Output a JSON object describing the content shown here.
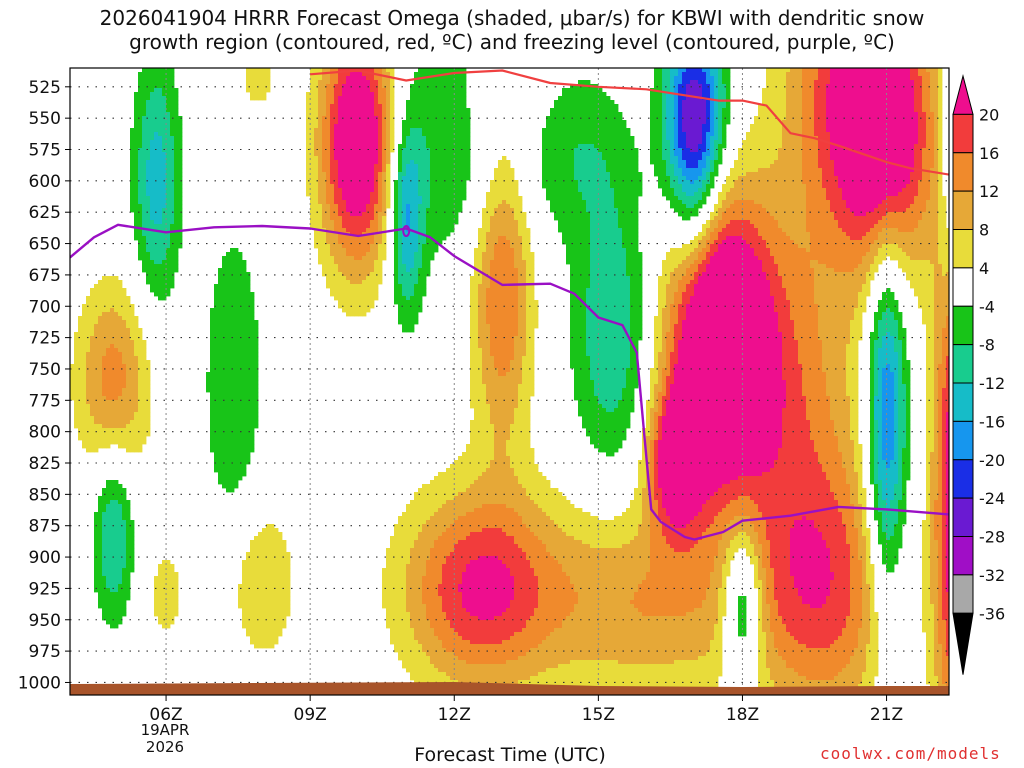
{
  "title": "2026041904 HRRR Forecast Omega (shaded, μbar/s) for KBWI with dendritic snow\ngrowth region (contoured, red, ºC) and freezing level (contoured, purple, ºC)",
  "x_axis_title": "Forecast Time (UTC)",
  "date_line1": "19APR",
  "date_line2": "2026",
  "credit": "coolwx.com/models",
  "chart_data": {
    "type": "heatmap",
    "title": "2026041904 HRRR Forecast Omega (shaded, μbar/s) for KBWI with dendritic snow growth region (contoured, red, ºC) and freezing level (contoured, purple, ºC)",
    "xlabel": "Forecast Time (UTC)",
    "ylabel": "",
    "x_range_hours": [
      4,
      22.3
    ],
    "y_range_hPa": [
      1010,
      510
    ],
    "x_ticks": [
      {
        "hour": 6,
        "label": "06Z"
      },
      {
        "hour": 9,
        "label": "09Z"
      },
      {
        "hour": 12,
        "label": "12Z"
      },
      {
        "hour": 15,
        "label": "15Z"
      },
      {
        "hour": 18,
        "label": "18Z"
      },
      {
        "hour": 21,
        "label": "21Z"
      }
    ],
    "y_ticks": [
      525,
      550,
      575,
      600,
      625,
      650,
      675,
      700,
      725,
      750,
      775,
      800,
      825,
      850,
      875,
      900,
      925,
      950,
      975,
      1000
    ],
    "colorbar": {
      "labels": [
        "20",
        "16",
        "12",
        "8",
        "4",
        "-4",
        "-8",
        "-12",
        "-16",
        "-20",
        "-24",
        "-28",
        "-32",
        "-36"
      ],
      "levels": [
        20,
        16,
        12,
        8,
        4,
        -4,
        -8,
        -12,
        -16,
        -20,
        -24,
        -28,
        -32,
        -36
      ],
      "bins": [
        {
          "min": 20,
          "max": null,
          "color": "#ee0e8e"
        },
        {
          "min": 16,
          "max": 20,
          "color": "#f23c3c"
        },
        {
          "min": 12,
          "max": 16,
          "color": "#f08a2c"
        },
        {
          "min": 8,
          "max": 12,
          "color": "#e6a837"
        },
        {
          "min": 4,
          "max": 8,
          "color": "#e8dc3a"
        },
        {
          "min": -4,
          "max": 4,
          "color": "#ffffff"
        },
        {
          "min": -8,
          "max": -4,
          "color": "#18c418"
        },
        {
          "min": -12,
          "max": -8,
          "color": "#18cc8e"
        },
        {
          "min": -16,
          "max": -12,
          "color": "#16bcc8"
        },
        {
          "min": -20,
          "max": -16,
          "color": "#1696ee"
        },
        {
          "min": -24,
          "max": -20,
          "color": "#1a2ee6"
        },
        {
          "min": -28,
          "max": -24,
          "color": "#6a1ad2"
        },
        {
          "min": -32,
          "max": -28,
          "color": "#a00ec6"
        },
        {
          "min": -36,
          "max": -32,
          "color": "#a8a8a8"
        },
        {
          "min": null,
          "max": -36,
          "color": "#000000"
        }
      ]
    },
    "terrain_color": "#a8542a",
    "omega_centers": [
      {
        "hour": 10.0,
        "p": 570,
        "amp": 30,
        "sh": 0.55,
        "sp": 70
      },
      {
        "hour": 13.0,
        "p": 680,
        "amp": 17,
        "sh": 0.45,
        "sp": 90
      },
      {
        "hour": 17.5,
        "p": 730,
        "amp": 36,
        "sh": 0.75,
        "sp": 80
      },
      {
        "hour": 16.6,
        "p": 825,
        "amp": 22,
        "sh": 0.4,
        "sp": 40
      },
      {
        "hour": 21.0,
        "p": 560,
        "amp": 28,
        "sh": 0.7,
        "sp": 80
      },
      {
        "hour": 12.5,
        "p": 925,
        "amp": 20,
        "sh": 1.1,
        "sp": 55
      },
      {
        "hour": 16.0,
        "p": 935,
        "amp": 12,
        "sh": 1.8,
        "sp": 55
      },
      {
        "hour": 19.8,
        "p": 930,
        "amp": 15,
        "sh": 1.0,
        "sp": 75
      },
      {
        "hour": 19.0,
        "p": 780,
        "amp": 13,
        "sh": 1.0,
        "sp": 110
      },
      {
        "hour": 4.9,
        "p": 760,
        "amp": 14,
        "sh": 0.55,
        "sp": 55
      },
      {
        "hour": 8.0,
        "p": 920,
        "amp": 8.5,
        "sh": 0.5,
        "sp": 45
      },
      {
        "hour": 6.0,
        "p": 930,
        "amp": 6,
        "sh": 0.3,
        "sp": 30
      },
      {
        "hour": 7.9,
        "p": 520,
        "amp": 6,
        "sh": 0.3,
        "sp": 20
      },
      {
        "hour": 22.4,
        "p": 850,
        "amp": 24,
        "sh": 0.3,
        "sp": 150
      },
      {
        "hour": 19.9,
        "p": 520,
        "amp": 14,
        "sh": 0.8,
        "sp": 90
      },
      {
        "hour": 13.5,
        "p": 540,
        "amp": 6,
        "sh": 1.5,
        "sp": 40
      },
      {
        "hour": 5.8,
        "p": 600,
        "amp": -14,
        "sh": 0.35,
        "sp": 70
      },
      {
        "hour": 7.4,
        "p": 760,
        "amp": -8,
        "sh": 0.45,
        "sp": 90
      },
      {
        "hour": 4.9,
        "p": 880,
        "amp": -13,
        "sh": 0.3,
        "sp": 50
      },
      {
        "hour": 11.0,
        "p": 630,
        "amp": -16,
        "sh": 0.25,
        "sp": 55
      },
      {
        "hour": 12.0,
        "p": 560,
        "amp": -10,
        "sh": 1.1,
        "sp": 70
      },
      {
        "hour": 14.5,
        "p": 560,
        "amp": -10,
        "sh": 0.9,
        "sp": 50
      },
      {
        "hour": 15.3,
        "p": 720,
        "amp": -12,
        "sh": 0.6,
        "sp": 80
      },
      {
        "hour": 17.0,
        "p": 545,
        "amp": -26,
        "sh": 0.45,
        "sp": 55
      },
      {
        "hour": 17.0,
        "p": 620,
        "amp": -9,
        "sh": 0.35,
        "sp": 60
      },
      {
        "hour": 18.0,
        "p": 935,
        "amp": -18,
        "sh": 0.3,
        "sp": 45
      },
      {
        "hour": 21.0,
        "p": 790,
        "amp": -22,
        "sh": 0.3,
        "sp": 110
      },
      {
        "hour": 22.3,
        "p": 590,
        "amp": -9,
        "sh": 0.15,
        "sp": 80
      }
    ],
    "series": [
      {
        "name": "",
        "color": "#f04040",
        "hour": [
          9.0,
          10.0,
          11.0,
          12.0,
          13.0,
          14.0,
          15.0,
          16.0,
          17.0,
          17.5,
          18.0,
          18.5,
          19.0,
          19.5,
          20.0,
          21.0,
          21.5,
          22.3
        ],
        "p": [
          515,
          512,
          520,
          514,
          512,
          522,
          525,
          527,
          533,
          536,
          536,
          540,
          562,
          566,
          572,
          585,
          590,
          595
        ]
      },
      {
        "name": "",
        "color": "#9a10c4",
        "hour": [
          4.0,
          4.5,
          5.0,
          6.0,
          7.0,
          8.0,
          9.0,
          10.0,
          11.0,
          11.5,
          12.0,
          13.0,
          14.0,
          14.5,
          15.0,
          15.5,
          15.8,
          15.95,
          16.1,
          16.3,
          16.8,
          17.0,
          17.6,
          18.0,
          19.0,
          20.0,
          21.0,
          22.3
        ],
        "p": [
          661,
          645,
          635,
          641,
          637,
          636,
          638,
          644,
          638,
          645,
          660,
          683,
          682,
          690,
          709,
          715,
          737,
          800,
          862,
          872,
          884,
          886,
          880,
          871,
          867,
          860,
          862,
          866
        ]
      }
    ]
  }
}
